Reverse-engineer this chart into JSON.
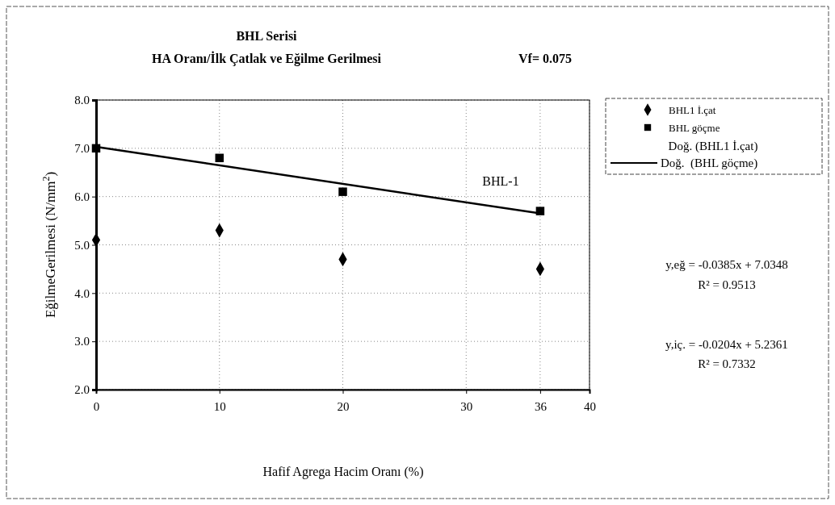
{
  "chart_data": {
    "type": "scatter",
    "title": "BHL Serisi",
    "subtitle": "HA Oranı/İlk Çatlak ve Eğilme Gerilmesi",
    "xlabel": "Hafif Agrega Hacim Oranı (%)",
    "ylabel": "EğilmeGerilmesi (N/mm$^{2}$)",
    "x": [
      0,
      10,
      20,
      36
    ],
    "series": [
      {
        "name": "BHL1 İ.çat",
        "color": "#000000",
        "marker": "diamond",
        "values": [
          5.1,
          5.3,
          4.7,
          4.5
        ]
      },
      {
        "name": "BHL göçme",
        "color": "#000000",
        "marker": "square",
        "values": [
          7.0,
          6.8,
          6.1,
          5.7
        ]
      },
      {
        "name": "Doğ.  (BHL göçme)",
        "type": "line",
        "color": "#000000",
        "x": [
          0,
          36
        ],
        "values": [
          7.03,
          5.65
        ]
      }
    ],
    "xlim": [
      0,
      40
    ],
    "xticks": [
      0,
      10,
      20,
      30,
      36,
      40
    ],
    "ylim": [
      2,
      8
    ],
    "yticks": [
      {
        "value": 2,
        "label": "2.0"
      },
      {
        "value": 3,
        "label": "3.0"
      },
      {
        "value": 4,
        "label": "4.0"
      },
      {
        "value": 5,
        "label": "5.0"
      },
      {
        "value": 6,
        "label": "6.0"
      },
      {
        "value": 7,
        "label": "7.0"
      },
      {
        "value": 8,
        "label": "8.0"
      }
    ],
    "grid": true,
    "legend": "right",
    "line_style": "solid",
    "annotations": [
      "Vf= 0.075",
      "BHL-1",
      "y,eğ = -0.0385x + 7.0348",
      "R² = 0.9513",
      "y,iç. = -0.0204x + 5.2361",
      "R² = 0.7332",
      "Doğ.  (BHL1 İ.çat)"
    ]
  }
}
